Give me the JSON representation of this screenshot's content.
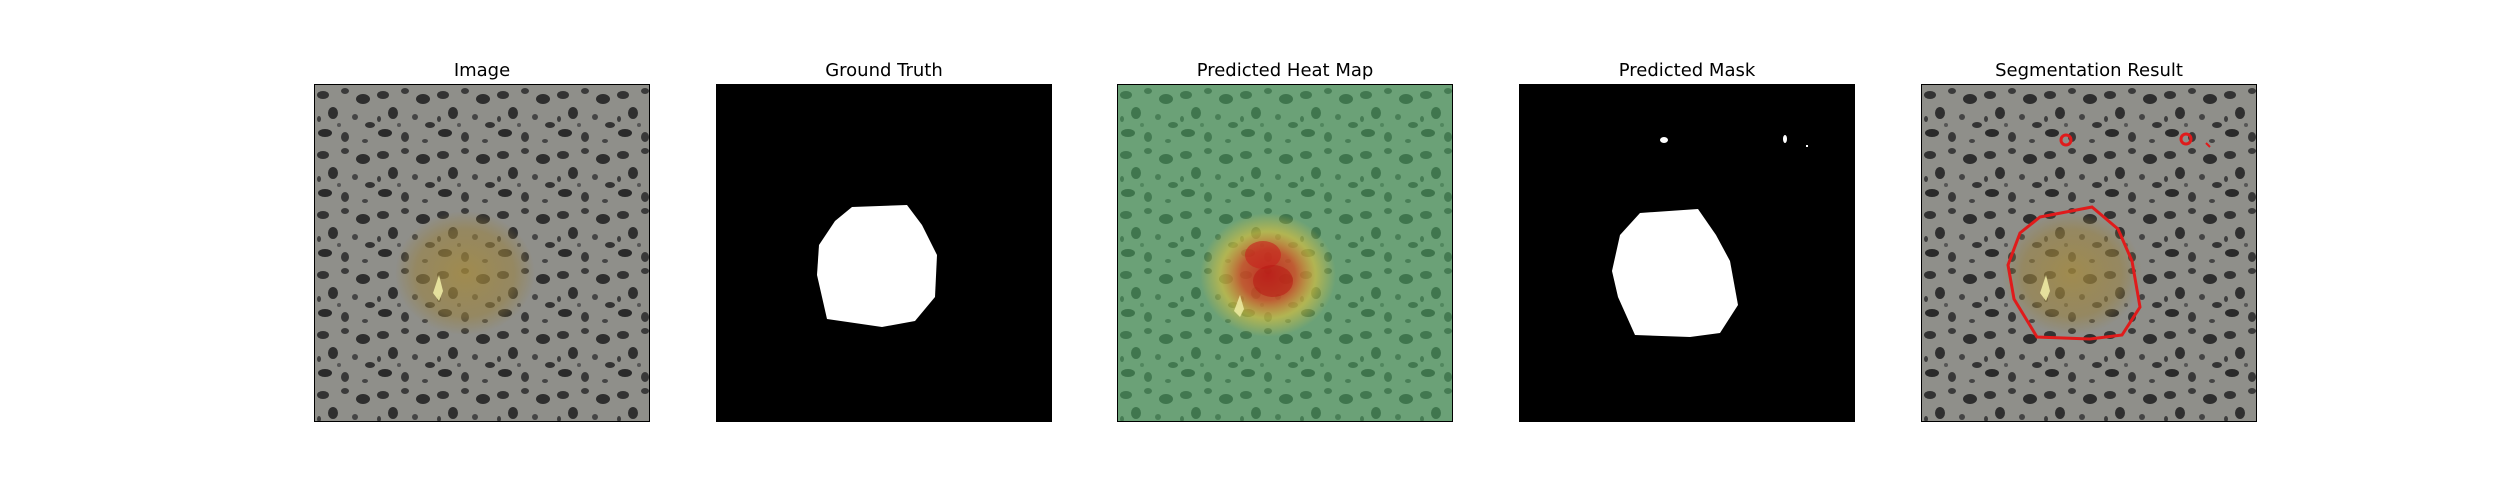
{
  "figure": {
    "panels": [
      {
        "title": "Image"
      },
      {
        "title": "Ground Truth"
      },
      {
        "title": "Predicted Heat Map"
      },
      {
        "title": "Predicted Mask"
      },
      {
        "title": "Segmentation Result"
      }
    ]
  },
  "colors": {
    "background": "#ffffff",
    "granite_base": "#8f8f8a",
    "speckle": "#2e2e2e",
    "defect_tint": "#9a8240",
    "mask_white": "#ffffff",
    "mask_black": "#000000",
    "heat_low": "#4fb067",
    "heat_mid": "#e0c23a",
    "heat_high": "#c8221c",
    "contour": "#e01b1b"
  }
}
